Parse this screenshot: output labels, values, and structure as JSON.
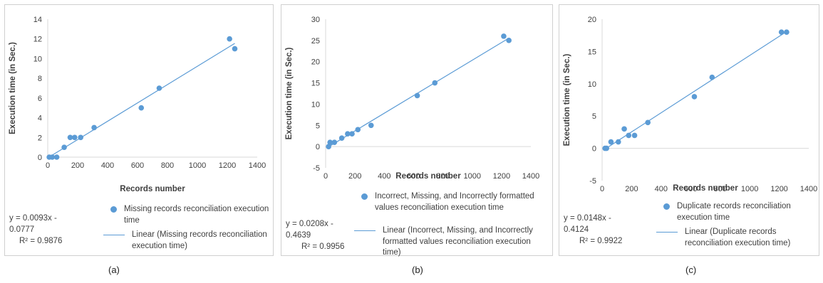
{
  "colors": {
    "series": "#5b9bd5",
    "axis": "#d9d9d9",
    "text": "#404040"
  },
  "chart_data": [
    {
      "type": "scatter",
      "caption": "(a)",
      "xlabel": "Records number",
      "ylabel": "Execution time (in Sec.)",
      "xlim": [
        0,
        1400
      ],
      "ylim": [
        0,
        14
      ],
      "xticks": [
        "0",
        "200",
        "400",
        "600",
        "800",
        "1000",
        "1200",
        "1400"
      ],
      "yticks": [
        "0",
        "2",
        "4",
        "6",
        "8",
        "10",
        "12",
        "14"
      ],
      "grid": false,
      "legend_position": "bottom",
      "series": [
        {
          "name": "Missing records reconciliation execution time",
          "x": [
            10,
            30,
            60,
            110,
            150,
            180,
            220,
            310,
            625,
            745,
            1215,
            1250
          ],
          "y": [
            0,
            0,
            0,
            1,
            2,
            2,
            2,
            3,
            5,
            7,
            12,
            11
          ]
        }
      ],
      "trendline": {
        "name": "Linear (Missing records reconciliation execution time)",
        "slope": 0.0093,
        "intercept": -0.0777,
        "equation": "y = 0.0093x - 0.0777",
        "r2": "R² = 0.9876"
      }
    },
    {
      "type": "scatter",
      "caption": "(b)",
      "xlabel": "Records number",
      "ylabel": "Execution time (in Sec.)",
      "xlim": [
        0,
        1400
      ],
      "ylim": [
        -5,
        30
      ],
      "xticks": [
        "0",
        "200",
        "400",
        "600",
        "800",
        "1000",
        "1200",
        "1400"
      ],
      "yticks": [
        "-5",
        "0",
        "5",
        "10",
        "15",
        "20",
        "25",
        "30"
      ],
      "grid": false,
      "legend_position": "bottom",
      "series": [
        {
          "name": "Incorrect, Missing, and Incorrectly formatted values reconciliation execution time",
          "x": [
            20,
            30,
            60,
            110,
            150,
            180,
            220,
            310,
            625,
            745,
            1215,
            1250
          ],
          "y": [
            0,
            1,
            1,
            2,
            3,
            3,
            4,
            5,
            12,
            15,
            26,
            25
          ]
        }
      ],
      "trendline": {
        "name": "Linear (Incorrect, Missing, and Incorrectly formatted values reconciliation execution time)",
        "slope": 0.0208,
        "intercept": -0.4639,
        "equation": "y = 0.0208x - 0.4639",
        "r2": "R² = 0.9956"
      }
    },
    {
      "type": "scatter",
      "caption": "(c)",
      "xlabel": "Records number",
      "ylabel": "Execution time (in Sec.)",
      "xlim": [
        0,
        1400
      ],
      "ylim": [
        -5,
        20
      ],
      "xticks": [
        "0",
        "200",
        "400",
        "600",
        "800",
        "1000",
        "1200",
        "1400"
      ],
      "yticks": [
        "-5",
        "0",
        "5",
        "10",
        "15",
        "20"
      ],
      "grid": false,
      "legend_position": "bottom",
      "series": [
        {
          "name": "Duplicate records reconciliation execution time",
          "x": [
            20,
            30,
            60,
            110,
            150,
            180,
            220,
            310,
            625,
            745,
            1215,
            1250
          ],
          "y": [
            0,
            0,
            1,
            1,
            3,
            2,
            2,
            4,
            8,
            11,
            18,
            18
          ]
        }
      ],
      "trendline": {
        "name": "Linear (Duplicate records reconciliation execution time)",
        "slope": 0.0148,
        "intercept": -0.4124,
        "equation": "y = 0.0148x - 0.4124",
        "r2": "R² = 0.9922"
      }
    }
  ]
}
